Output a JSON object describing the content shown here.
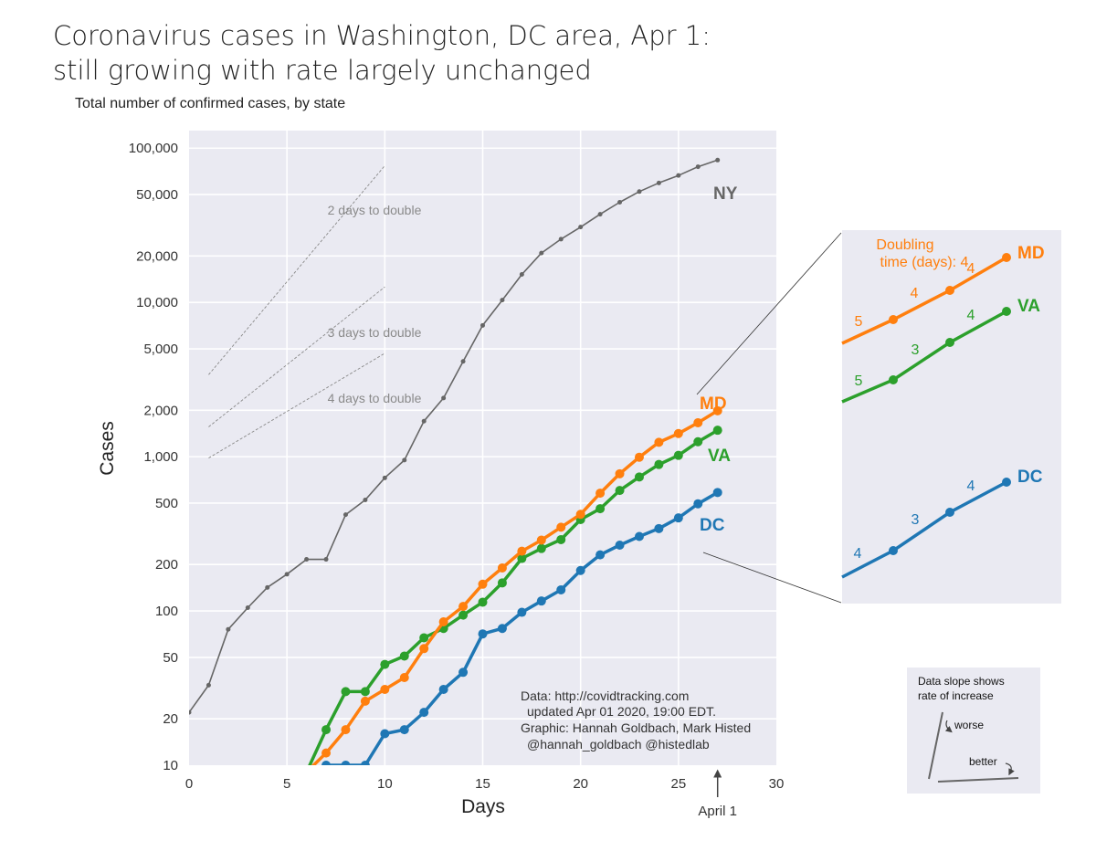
{
  "title_lines": [
    "Coronavirus cases in Washington, DC area, Apr 1:",
    "still growing with rate largely unchanged"
  ],
  "subtitle": "Total number of confirmed cases, by state",
  "chart_data": {
    "type": "line",
    "xlabel": "Days",
    "ylabel": "Cases",
    "xlim": [
      0,
      30
    ],
    "ylim": [
      10,
      130000
    ],
    "yscale": "log",
    "grid": true,
    "x_ticks": [
      0,
      5,
      10,
      15,
      20,
      25,
      30
    ],
    "y_ticks": [
      10,
      20,
      50,
      100,
      200,
      500,
      1000,
      2000,
      5000,
      10000,
      20000,
      50000,
      100000
    ],
    "y_tick_labels": [
      "10",
      "20",
      "50",
      "100",
      "200",
      "500",
      "1,000",
      "2,000",
      "5,000",
      "10,000",
      "20,000",
      "50,000",
      "100,000"
    ],
    "series": [
      {
        "name": "NY",
        "color": "#666666",
        "x": [
          0,
          1,
          2,
          3,
          4,
          5,
          6,
          7,
          8,
          9,
          10,
          11,
          12,
          13,
          14,
          15,
          16,
          17,
          18,
          19,
          20,
          21,
          22,
          23,
          24,
          25,
          26,
          27
        ],
        "y": [
          22,
          33,
          76,
          105,
          142,
          173,
          216,
          216,
          421,
          524,
          729,
          950,
          1700,
          2400,
          4150,
          7100,
          10350,
          15200,
          20900,
          25700,
          30800,
          37300,
          44600,
          52300,
          59500,
          66500,
          75800,
          83700
        ]
      },
      {
        "name": "MD",
        "color": "#ff7f0e",
        "x": [
          6,
          7,
          8,
          9,
          10,
          11,
          12,
          13,
          14,
          15,
          16,
          17,
          18,
          19,
          20,
          21,
          22,
          23,
          24,
          25,
          26,
          27
        ],
        "y": [
          9,
          12,
          17,
          26,
          31,
          37,
          57,
          85,
          107,
          149,
          190,
          244,
          288,
          349,
          423,
          580,
          775,
          992,
          1239,
          1413,
          1660,
          1985
        ]
      },
      {
        "name": "VA",
        "color": "#2ca02c",
        "x": [
          6,
          7,
          8,
          9,
          10,
          11,
          12,
          13,
          14,
          15,
          16,
          17,
          18,
          19,
          20,
          21,
          22,
          23,
          24,
          25,
          26,
          27
        ],
        "y": [
          9,
          17,
          30,
          30,
          45,
          51,
          67,
          77,
          94,
          114,
          152,
          219,
          254,
          290,
          391,
          460,
          604,
          739,
          890,
          1020,
          1250,
          1484
        ]
      },
      {
        "name": "DC",
        "color": "#1f77b4",
        "x": [
          6,
          7,
          8,
          9,
          10,
          11,
          12,
          13,
          14,
          15,
          16,
          17,
          18,
          19,
          20,
          21,
          22,
          23,
          24,
          25,
          26,
          27
        ],
        "y": [
          9,
          10,
          10,
          10,
          16,
          17,
          22,
          31,
          40,
          71,
          77,
          98,
          116,
          137,
          183,
          231,
          267,
          304,
          342,
          401,
          495,
          586
        ]
      }
    ],
    "doubling_guides": [
      {
        "label": "2 days to double",
        "x": [
          1,
          10
        ],
        "y": [
          3400,
          77000
        ]
      },
      {
        "label": "3 days to double",
        "x": [
          1,
          10
        ],
        "y": [
          1560,
          12600
        ]
      },
      {
        "label": "4 days to double",
        "x": [
          1,
          10
        ],
        "y": [
          980,
          4680
        ]
      }
    ],
    "series_labels": [
      "NY",
      "MD",
      "VA",
      "DC"
    ],
    "annotations": {
      "source_lines": [
        "Data: http://covidtracking.com",
        "updated Apr 01 2020, 19:00 EDT.",
        "Graphic: Hannah Goldbach, Mark Histed",
        "@hannah_goldbach @histedlab"
      ],
      "april_marker": {
        "label": "April 1",
        "x": 27
      }
    }
  },
  "inset": {
    "title_lines": [
      "Doubling",
      "time (days): 4"
    ],
    "md_labels": [
      "5",
      "4",
      "4"
    ],
    "va_labels": [
      "5",
      "3",
      "4"
    ],
    "dc_labels": [
      "4",
      "3",
      "4"
    ]
  },
  "legend_box": {
    "title_lines": [
      "Data slope shows",
      "rate of increase"
    ],
    "worse": "worse",
    "better": "better"
  }
}
